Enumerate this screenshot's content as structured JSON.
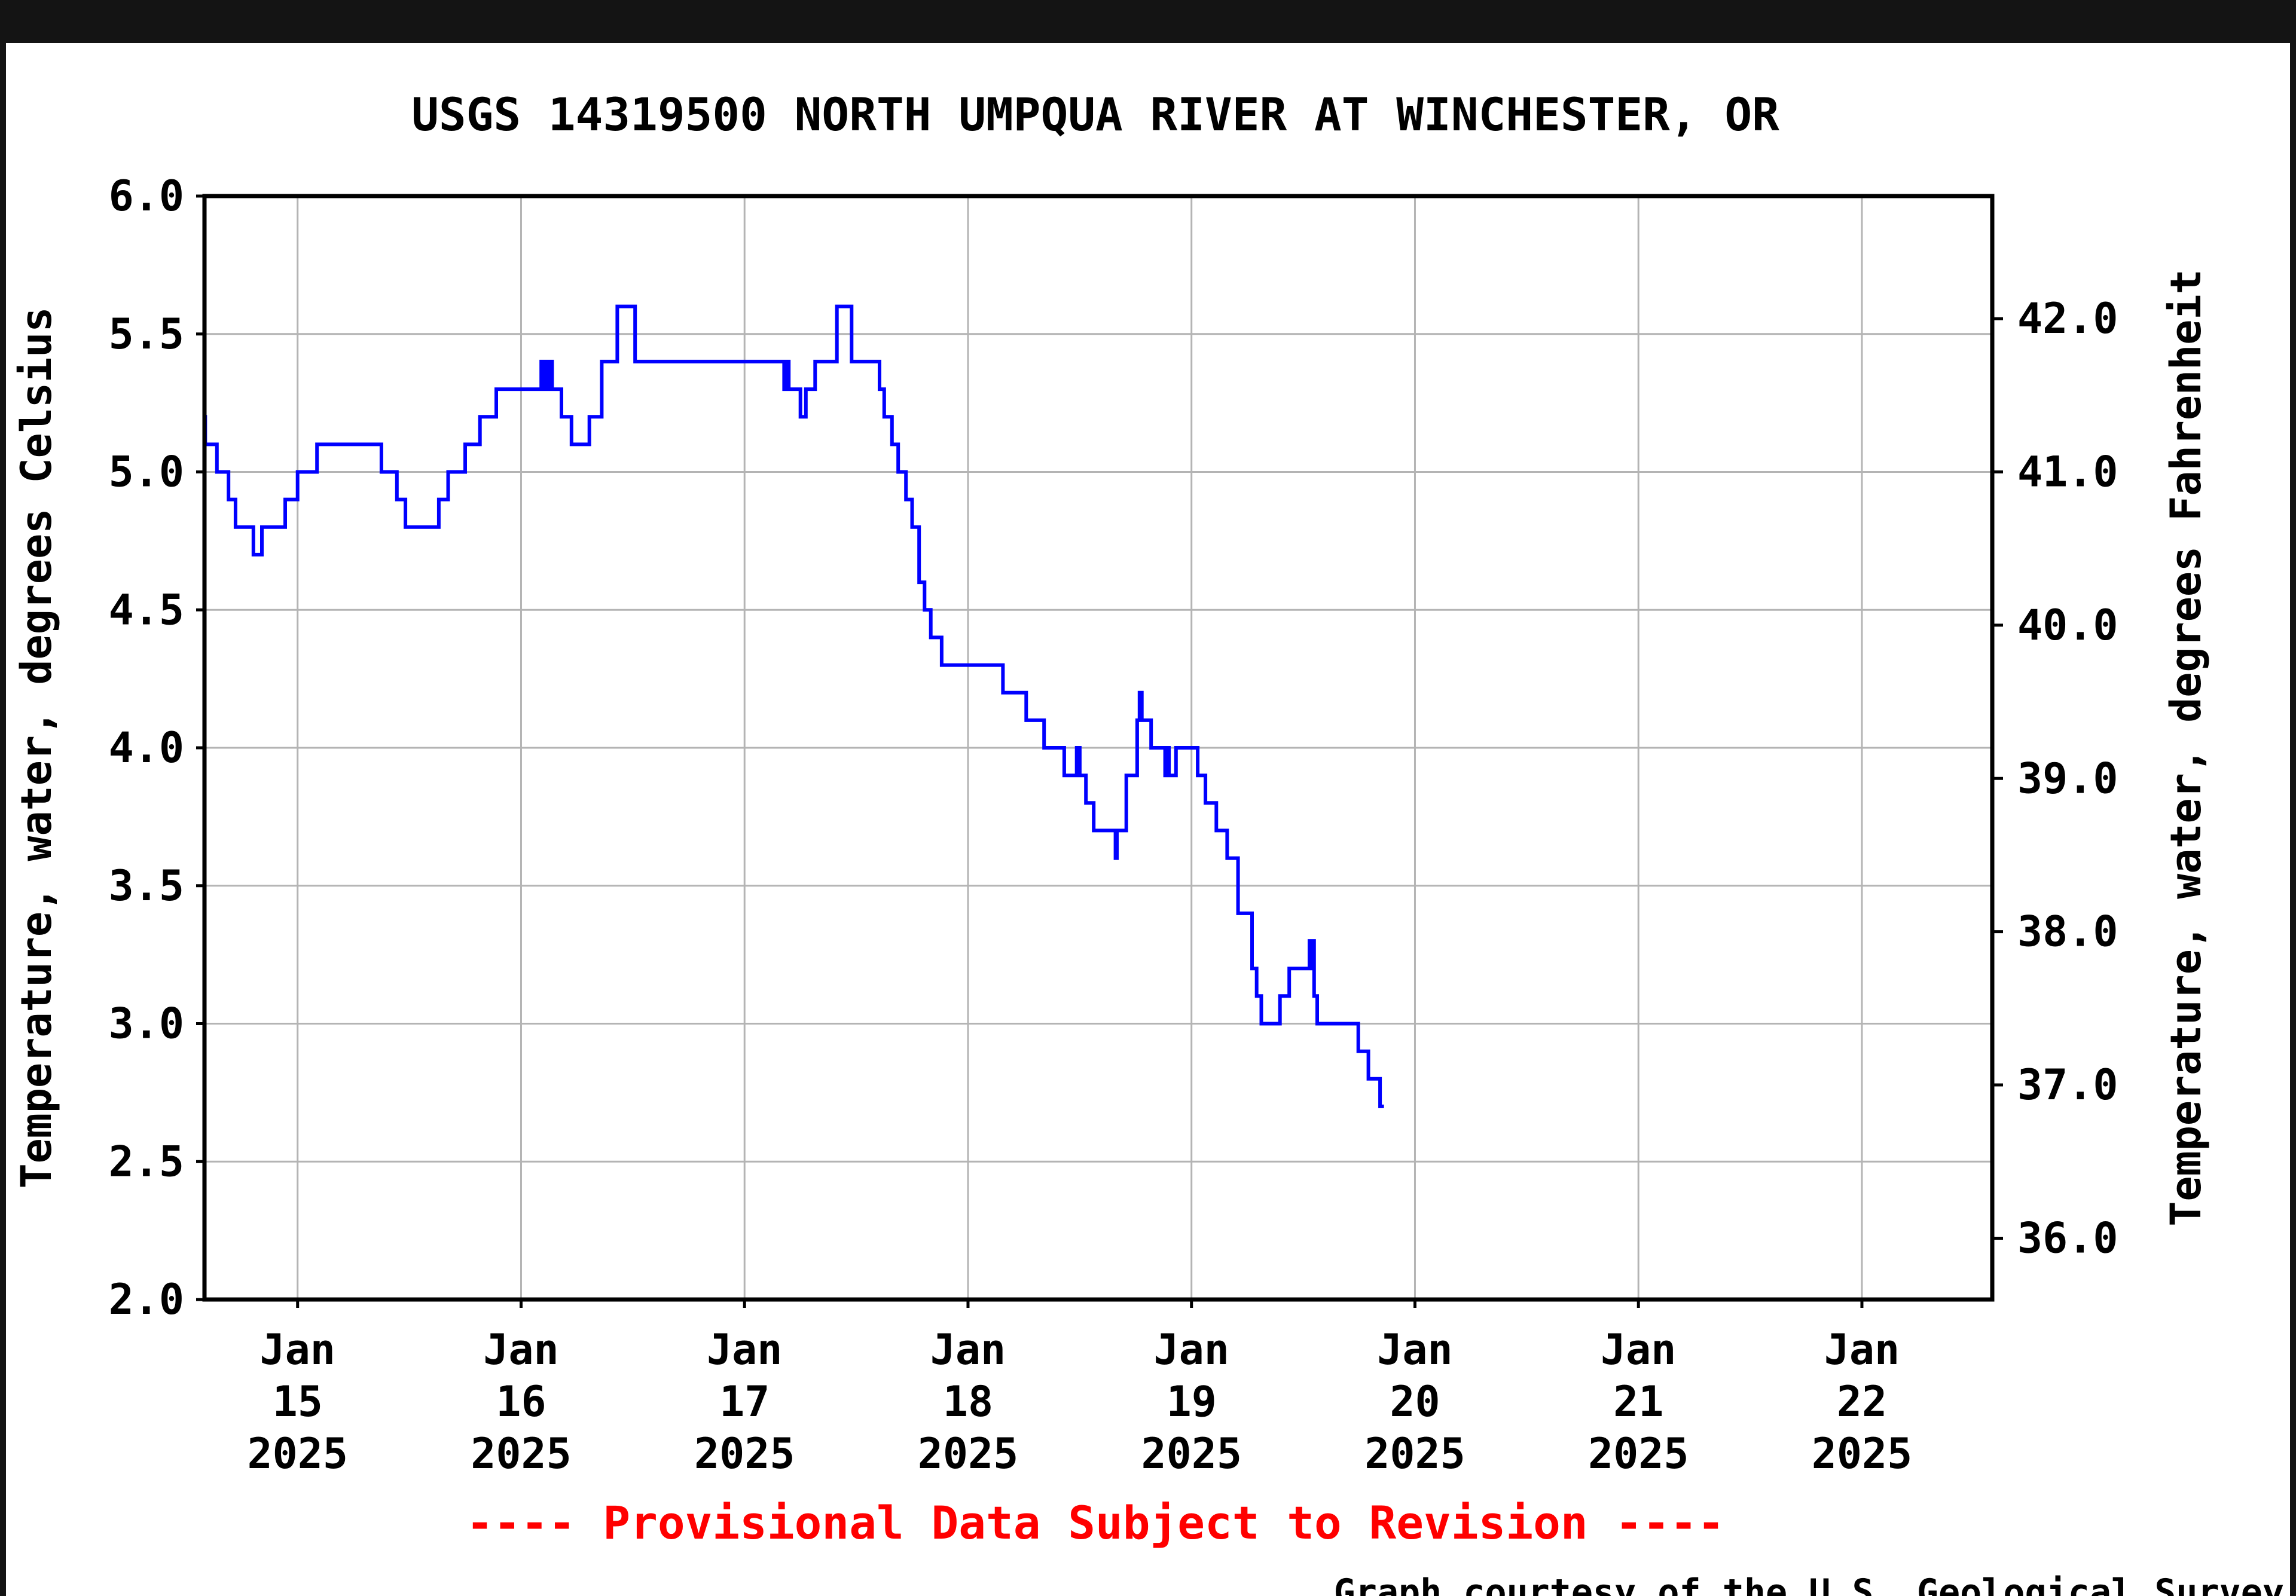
{
  "chart_data": {
    "type": "line",
    "title": "USGS 14319500 NORTH UMPQUA RIVER AT WINCHESTER, OR",
    "ylabel": "Temperature, water, degrees Celsius",
    "ylabel_right": "Temperature, water, degrees Fahrenheit",
    "ylim": [
      2.0,
      6.0
    ],
    "ylim_right": [
      35.6,
      42.8
    ],
    "yticks": [
      "2.0",
      "2.5",
      "3.0",
      "3.5",
      "4.0",
      "4.5",
      "5.0",
      "5.5",
      "6.0"
    ],
    "yticks_right": [
      "36.0",
      "37.0",
      "38.0",
      "39.0",
      "40.0",
      "41.0",
      "42.0"
    ],
    "xlim": [
      "2025-01-14T14:00",
      "2025-01-22T14:00"
    ],
    "xticks": [
      {
        "date": "2025-01-15",
        "label": [
          "Jan",
          "15",
          "2025"
        ]
      },
      {
        "date": "2025-01-16",
        "label": [
          "Jan",
          "16",
          "2025"
        ]
      },
      {
        "date": "2025-01-17",
        "label": [
          "Jan",
          "17",
          "2025"
        ]
      },
      {
        "date": "2025-01-18",
        "label": [
          "Jan",
          "18",
          "2025"
        ]
      },
      {
        "date": "2025-01-19",
        "label": [
          "Jan",
          "19",
          "2025"
        ]
      },
      {
        "date": "2025-01-20",
        "label": [
          "Jan",
          "20",
          "2025"
        ]
      },
      {
        "date": "2025-01-21",
        "label": [
          "Jan",
          "21",
          "2025"
        ]
      },
      {
        "date": "2025-01-22",
        "label": [
          "Jan",
          "22",
          "2025"
        ]
      }
    ],
    "grid": true,
    "series": [
      {
        "color": "#0000ff",
        "step": true,
        "points": [
          [
            "2025-01-14T14:00",
            5.2
          ],
          [
            "2025-01-14T14:05",
            5.1
          ],
          [
            "2025-01-14T15:15",
            5.1
          ],
          [
            "2025-01-14T15:20",
            5.0
          ],
          [
            "2025-01-14T16:00",
            5.0
          ],
          [
            "2025-01-14T16:35",
            4.9
          ],
          [
            "2025-01-14T17:20",
            4.8
          ],
          [
            "2025-01-14T19:05",
            4.8
          ],
          [
            "2025-01-14T19:15",
            4.7
          ],
          [
            "2025-01-14T20:00",
            4.7
          ],
          [
            "2025-01-14T20:10",
            4.8
          ],
          [
            "2025-01-14T22:00",
            4.8
          ],
          [
            "2025-01-14T22:40",
            4.9
          ],
          [
            "2025-01-14T23:50",
            4.9
          ],
          [
            "2025-01-15T00:00",
            5.0
          ],
          [
            "2025-01-15T01:55",
            5.0
          ],
          [
            "2025-01-15T02:05",
            5.1
          ],
          [
            "2025-01-15T08:50",
            5.1
          ],
          [
            "2025-01-15T09:00",
            5.0
          ],
          [
            "2025-01-15T10:25",
            5.0
          ],
          [
            "2025-01-15T10:40",
            4.9
          ],
          [
            "2025-01-15T11:35",
            4.8
          ],
          [
            "2025-01-15T15:00",
            4.8
          ],
          [
            "2025-01-15T15:10",
            4.9
          ],
          [
            "2025-01-15T16:05",
            4.9
          ],
          [
            "2025-01-15T16:10",
            5.0
          ],
          [
            "2025-01-15T17:40",
            5.0
          ],
          [
            "2025-01-15T18:00",
            5.1
          ],
          [
            "2025-01-15T19:20",
            5.1
          ],
          [
            "2025-01-15T19:35",
            5.2
          ],
          [
            "2025-01-15T21:05",
            5.2
          ],
          [
            "2025-01-15T21:20",
            5.3
          ],
          [
            "2025-01-16T02:05",
            5.3
          ],
          [
            "2025-01-16T02:10",
            5.4
          ],
          [
            "2025-01-16T02:15",
            5.3
          ],
          [
            "2025-01-16T02:30",
            5.4
          ],
          [
            "2025-01-16T02:40",
            5.3
          ],
          [
            "2025-01-16T03:00",
            5.4
          ],
          [
            "2025-01-16T03:20",
            5.3
          ],
          [
            "2025-01-16T04:05",
            5.3
          ],
          [
            "2025-01-16T04:20",
            5.2
          ],
          [
            "2025-01-16T05:10",
            5.2
          ],
          [
            "2025-01-16T05:25",
            5.1
          ],
          [
            "2025-01-16T07:10",
            5.1
          ],
          [
            "2025-01-16T07:20",
            5.2
          ],
          [
            "2025-01-16T07:50",
            5.2
          ],
          [
            "2025-01-16T08:40",
            5.4
          ],
          [
            "2025-01-16T09:30",
            5.4
          ],
          [
            "2025-01-16T10:20",
            5.6
          ],
          [
            "2025-01-16T11:20",
            5.6
          ],
          [
            "2025-01-16T12:15",
            5.4
          ],
          [
            "2025-01-17T04:00",
            5.4
          ],
          [
            "2025-01-17T04:15",
            5.3
          ],
          [
            "2025-01-17T04:30",
            5.4
          ],
          [
            "2025-01-17T04:45",
            5.3
          ],
          [
            "2025-01-17T05:40",
            5.3
          ],
          [
            "2025-01-17T06:00",
            5.2
          ],
          [
            "2025-01-17T06:25",
            5.2
          ],
          [
            "2025-01-17T06:35",
            5.3
          ],
          [
            "2025-01-17T07:20",
            5.3
          ],
          [
            "2025-01-17T07:35",
            5.4
          ],
          [
            "2025-01-17T08:20",
            5.4
          ],
          [
            "2025-01-17T09:55",
            5.6
          ],
          [
            "2025-01-17T10:40",
            5.6
          ],
          [
            "2025-01-17T11:30",
            5.4
          ],
          [
            "2025-01-17T13:45",
            5.4
          ],
          [
            "2025-01-17T14:30",
            5.3
          ],
          [
            "2025-01-17T15:00",
            5.2
          ],
          [
            "2025-01-17T15:50",
            5.1
          ],
          [
            "2025-01-17T16:30",
            5.0
          ],
          [
            "2025-01-17T17:20",
            4.9
          ],
          [
            "2025-01-17T18:00",
            4.8
          ],
          [
            "2025-01-17T18:45",
            4.6
          ],
          [
            "2025-01-17T19:20",
            4.5
          ],
          [
            "2025-01-17T20:00",
            4.4
          ],
          [
            "2025-01-17T21:00",
            4.4
          ],
          [
            "2025-01-17T21:10",
            4.3
          ],
          [
            "2025-01-18T03:40",
            4.3
          ],
          [
            "2025-01-18T03:45",
            4.2
          ],
          [
            "2025-01-18T04:10",
            4.2
          ],
          [
            "2025-01-18T04:20",
            4.2
          ],
          [
            "2025-01-18T06:00",
            4.2
          ],
          [
            "2025-01-18T06:15",
            4.1
          ],
          [
            "2025-01-18T08:00",
            4.1
          ],
          [
            "2025-01-18T08:10",
            4.0
          ],
          [
            "2025-01-18T10:00",
            4.0
          ],
          [
            "2025-01-18T10:20",
            3.9
          ],
          [
            "2025-01-18T11:30",
            3.9
          ],
          [
            "2025-01-18T11:40",
            4.0
          ],
          [
            "2025-01-18T12:00",
            3.9
          ],
          [
            "2025-01-18T12:40",
            3.8
          ],
          [
            "2025-01-18T13:30",
            3.7
          ],
          [
            "2025-01-18T15:40",
            3.7
          ],
          [
            "2025-01-18T15:50",
            3.6
          ],
          [
            "2025-01-18T16:00",
            3.7
          ],
          [
            "2025-01-18T17:00",
            3.9
          ],
          [
            "2025-01-18T18:10",
            4.1
          ],
          [
            "2025-01-18T18:25",
            4.2
          ],
          [
            "2025-01-18T18:40",
            4.1
          ],
          [
            "2025-01-18T19:40",
            4.0
          ],
          [
            "2025-01-18T21:05",
            4.0
          ],
          [
            "2025-01-18T21:10",
            3.9
          ],
          [
            "2025-01-18T21:25",
            4.0
          ],
          [
            "2025-01-18T21:35",
            3.9
          ],
          [
            "2025-01-18T22:20",
            4.0
          ],
          [
            "2025-01-19T00:00",
            4.0
          ],
          [
            "2025-01-19T00:40",
            3.9
          ],
          [
            "2025-01-19T01:30",
            3.8
          ],
          [
            "2025-01-19T02:40",
            3.7
          ],
          [
            "2025-01-19T03:50",
            3.6
          ],
          [
            "2025-01-19T05:00",
            3.4
          ],
          [
            "2025-01-19T06:30",
            3.2
          ],
          [
            "2025-01-19T07:00",
            3.1
          ],
          [
            "2025-01-19T07:30",
            3.0
          ],
          [
            "2025-01-19T09:00",
            3.0
          ],
          [
            "2025-01-19T09:30",
            3.1
          ],
          [
            "2025-01-19T10:30",
            3.2
          ],
          [
            "2025-01-19T12:30",
            3.2
          ],
          [
            "2025-01-19T12:40",
            3.3
          ],
          [
            "2025-01-19T12:50",
            3.2
          ],
          [
            "2025-01-19T13:00",
            3.3
          ],
          [
            "2025-01-19T13:10",
            3.1
          ],
          [
            "2025-01-19T13:30",
            3.0
          ],
          [
            "2025-01-19T17:40",
            3.0
          ],
          [
            "2025-01-19T17:55",
            2.9
          ],
          [
            "2025-01-19T18:50",
            2.9
          ],
          [
            "2025-01-19T19:00",
            2.8
          ],
          [
            "2025-01-19T19:40",
            2.8
          ],
          [
            "2025-01-19T20:15",
            2.7
          ],
          [
            "2025-01-19T20:40",
            2.7
          ]
        ]
      }
    ],
    "annotations": [
      "---- Provisional Data Subject to Revision ----",
      "Graph courtesy of the U.S. Geological Survey"
    ],
    "colors": {
      "line": "#0000ff",
      "annotation": "#ff0000",
      "grid": "#b4b4b4",
      "frame": "#000000"
    }
  }
}
